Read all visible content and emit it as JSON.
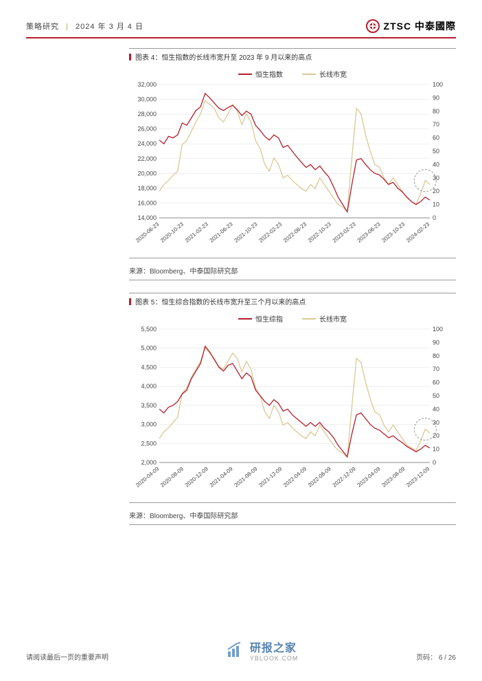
{
  "header": {
    "category": "策略研究",
    "date": "2024 年 3 月 4 日",
    "brand": "ZTSC 中泰國際",
    "brand_accent": "#b31e2c"
  },
  "colors": {
    "series_main": "#b31e2c",
    "series_alt": "#d9c894",
    "grid": "#dddddd",
    "axis": "#666666",
    "title_bar": "#b31e2c",
    "border": "#999999",
    "highlight_circle": "#999999"
  },
  "chart4": {
    "title": "图表 4：恒生指数的长线市宽升至 2023 年 9 月以来的高点",
    "legend": [
      "恒生指数",
      "长线市宽"
    ],
    "xticks": [
      "2020-06-23",
      "2020-10-23",
      "2021-02-23",
      "2021-06-23",
      "2021-10-23",
      "2022-02-23",
      "2022-06-23",
      "2022-10-23",
      "2023-02-23",
      "2023-06-23",
      "2023-10-23",
      "2024-02-23"
    ],
    "left_axis": {
      "min": 14000,
      "max": 32000,
      "step": 2000,
      "ticks": [
        14000,
        16000,
        18000,
        20000,
        22000,
        24000,
        26000,
        28000,
        30000,
        32000
      ]
    },
    "right_axis": {
      "min": 0,
      "max": 100,
      "step": 10,
      "ticks": [
        0,
        10,
        20,
        30,
        40,
        50,
        60,
        70,
        80,
        90,
        100
      ]
    },
    "series_main": [
      24500,
      24000,
      25000,
      24800,
      25200,
      26800,
      26500,
      27500,
      28500,
      29000,
      30800,
      30200,
      29500,
      28800,
      28500,
      28900,
      29200,
      28600,
      27800,
      28400,
      28000,
      26500,
      25800,
      25000,
      24500,
      25200,
      24800,
      23500,
      23800,
      23000,
      22200,
      21500,
      20800,
      21200,
      20500,
      21000,
      20200,
      19500,
      18200,
      16800,
      15800,
      14800,
      18500,
      21800,
      22000,
      21200,
      20500,
      20000,
      19800,
      19200,
      18500,
      18800,
      18000,
      17500,
      16800,
      16200,
      15800,
      16200,
      16800,
      16400
    ],
    "series_alt": [
      20,
      25,
      28,
      32,
      35,
      55,
      58,
      65,
      72,
      78,
      88,
      85,
      82,
      75,
      72,
      78,
      85,
      80,
      70,
      78,
      72,
      58,
      52,
      40,
      35,
      45,
      40,
      30,
      32,
      28,
      25,
      22,
      20,
      25,
      22,
      30,
      25,
      20,
      15,
      10,
      8,
      5,
      45,
      82,
      78,
      62,
      50,
      40,
      38,
      30,
      25,
      30,
      25,
      20,
      15,
      12,
      10,
      18,
      28,
      25
    ],
    "source": "来源：Bloomberg、中泰国际研究部"
  },
  "chart5": {
    "title": "图表 5：恒生综合指数的长线市宽升至三个月以来的高点",
    "legend": [
      "恒生综指",
      "长线市宽"
    ],
    "xticks": [
      "2020-04-09",
      "2020-08-09",
      "2020-12-09",
      "2021-04-09",
      "2021-08-09",
      "2021-12-09",
      "2022-04-09",
      "2022-08-09",
      "2022-12-09",
      "2023-04-09",
      "2023-08-09",
      "2023-12-09"
    ],
    "left_axis": {
      "min": 2000,
      "max": 5500,
      "step": 500,
      "ticks": [
        2000,
        2500,
        3000,
        3500,
        4000,
        4500,
        5000,
        5500
      ]
    },
    "right_axis": {
      "min": 0,
      "max": 100,
      "step": 10,
      "ticks": [
        0,
        10,
        20,
        30,
        40,
        50,
        60,
        70,
        80,
        90,
        100
      ]
    },
    "series_main": [
      3400,
      3300,
      3450,
      3500,
      3600,
      3800,
      3900,
      4200,
      4400,
      4600,
      5050,
      4900,
      4700,
      4500,
      4400,
      4550,
      4600,
      4400,
      4200,
      4350,
      4250,
      3900,
      3750,
      3600,
      3500,
      3650,
      3550,
      3350,
      3400,
      3250,
      3150,
      3050,
      2950,
      3050,
      2950,
      3050,
      2900,
      2800,
      2650,
      2450,
      2300,
      2150,
      2750,
      3250,
      3300,
      3150,
      3000,
      2900,
      2850,
      2750,
      2650,
      2700,
      2600,
      2520,
      2420,
      2350,
      2280,
      2350,
      2450,
      2380
    ],
    "series_alt": [
      18,
      23,
      26,
      30,
      34,
      52,
      56,
      64,
      70,
      76,
      86,
      82,
      78,
      72,
      70,
      76,
      82,
      78,
      68,
      76,
      70,
      56,
      50,
      38,
      33,
      43,
      38,
      28,
      30,
      26,
      23,
      20,
      18,
      23,
      20,
      28,
      23,
      18,
      13,
      9,
      7,
      4,
      42,
      78,
      75,
      60,
      48,
      38,
      36,
      28,
      23,
      28,
      23,
      18,
      13,
      11,
      9,
      16,
      25,
      22
    ],
    "source": "来源：Bloomberg、中泰国际研究部"
  },
  "footer": {
    "disclaimer": "请阅读最后一页的重要声明",
    "watermark_name": "研报之家",
    "watermark_url": "YBLOOK.COM",
    "page_label": "页码：",
    "page_current": "6",
    "page_total": "26"
  }
}
